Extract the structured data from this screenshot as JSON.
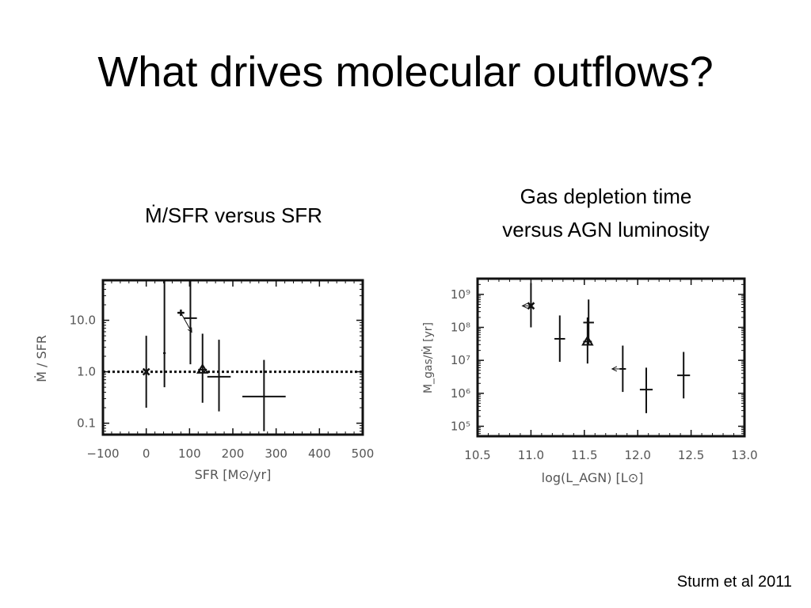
{
  "slide": {
    "title": "What drives molecular outflows?",
    "left_subtitle": "Ṁ/SFR versus SFR",
    "right_subtitle_lines": [
      "Gas depletion time",
      "versus AGN luminosity"
    ],
    "citation": "Sturm et al 2011"
  },
  "chart_data": [
    {
      "type": "scatter",
      "xlabel": "SFR [M⊙/yr]",
      "ylabel": "Ṁ / SFR",
      "xlim": [
        -100,
        500
      ],
      "ylim": [
        0.06,
        60
      ],
      "yscale": "log",
      "grid": false,
      "x_ticks": [
        -100,
        0,
        100,
        200,
        300,
        400,
        500
      ],
      "x_tick_labels": [
        "−100",
        "0",
        "100",
        "200",
        "300",
        "400",
        "500"
      ],
      "y_ticks": [
        0.1,
        1.0,
        10.0
      ],
      "y_tick_labels": [
        "0.1",
        "1.0",
        "10.0"
      ],
      "reference_line": {
        "y": 1.0,
        "style": "dotted"
      },
      "points": [
        {
          "x": 0,
          "y": 1.0,
          "y_low": 0.2,
          "y_high": 5.0,
          "x_err": 0,
          "marker": "x"
        },
        {
          "x": 42,
          "y": 2.3,
          "y_low": 0.5,
          "y_high": 60,
          "x_err": 3,
          "marker": "none"
        },
        {
          "x": 80,
          "y": 14,
          "y_low": 14,
          "y_high": 14,
          "x_err": 8,
          "marker": "plus",
          "arrow": {
            "dx": 25,
            "dy_factor": 0.42
          }
        },
        {
          "x": 102,
          "y": 11,
          "y_low": 1.4,
          "y_high": 60,
          "x_err": 15,
          "marker": "none"
        },
        {
          "x": 130,
          "y": 1.1,
          "y_low": 0.25,
          "y_high": 5.5,
          "x_err": 10,
          "marker": "triangle"
        },
        {
          "x": 168,
          "y": 0.8,
          "y_low": 0.17,
          "y_high": 4.2,
          "x_err": 27,
          "marker": "none"
        },
        {
          "x": 272,
          "y": 0.33,
          "y_low": 0.07,
          "y_high": 1.7,
          "x_err": 50,
          "marker": "none"
        }
      ]
    },
    {
      "type": "scatter",
      "xlabel": "log(L_AGN) [L⊙]",
      "ylabel": "M_gas/Ṁ [yr]",
      "xlim": [
        10.5,
        13.0
      ],
      "ylim": [
        50000,
        3000000000
      ],
      "yscale": "log",
      "grid": false,
      "x_ticks": [
        10.5,
        11.0,
        11.5,
        12.0,
        12.5,
        13.0
      ],
      "x_tick_labels": [
        "10.5",
        "11.0",
        "11.5",
        "12.0",
        "12.5",
        "13.0"
      ],
      "y_ticks": [
        100000,
        1000000,
        10000000,
        100000000,
        1000000000
      ],
      "y_tick_labels": [
        "10⁵",
        "10⁶",
        "10⁷",
        "10⁸",
        "10⁹"
      ],
      "points": [
        {
          "x": 11.0,
          "y": 450000000,
          "y_low": 100000000,
          "y_high": 2200000000,
          "x_err": 0,
          "marker": "x",
          "upper_limit_arrow": {
            "dx": -0.08
          }
        },
        {
          "x": 11.27,
          "y": 45000000,
          "y_low": 9000000,
          "y_high": 230000000,
          "x_err": 0.05,
          "marker": "none"
        },
        {
          "x": 11.54,
          "y": 140000000,
          "y_low": 30000000,
          "y_high": 700000000,
          "x_err": 0.05,
          "marker": "none"
        },
        {
          "x": 11.53,
          "y": 37000000,
          "y_low": 8000000,
          "y_high": 200000000,
          "x_err": 0.04,
          "marker": "triangle"
        },
        {
          "x": 11.86,
          "y": 5500000,
          "y_low": 1100000,
          "y_high": 28000000,
          "x_err": 0.03,
          "marker": "none",
          "upper_limit_arrow": {
            "dx": -0.1
          }
        },
        {
          "x": 12.08,
          "y": 1300000,
          "y_low": 250000,
          "y_high": 6000000,
          "x_err": 0.06,
          "marker": "none"
        },
        {
          "x": 12.43,
          "y": 3500000,
          "y_low": 700000,
          "y_high": 18000000,
          "x_err": 0.06,
          "marker": "none"
        }
      ]
    }
  ],
  "colors": {
    "ink": "#111111",
    "tick_text": "#555555"
  }
}
